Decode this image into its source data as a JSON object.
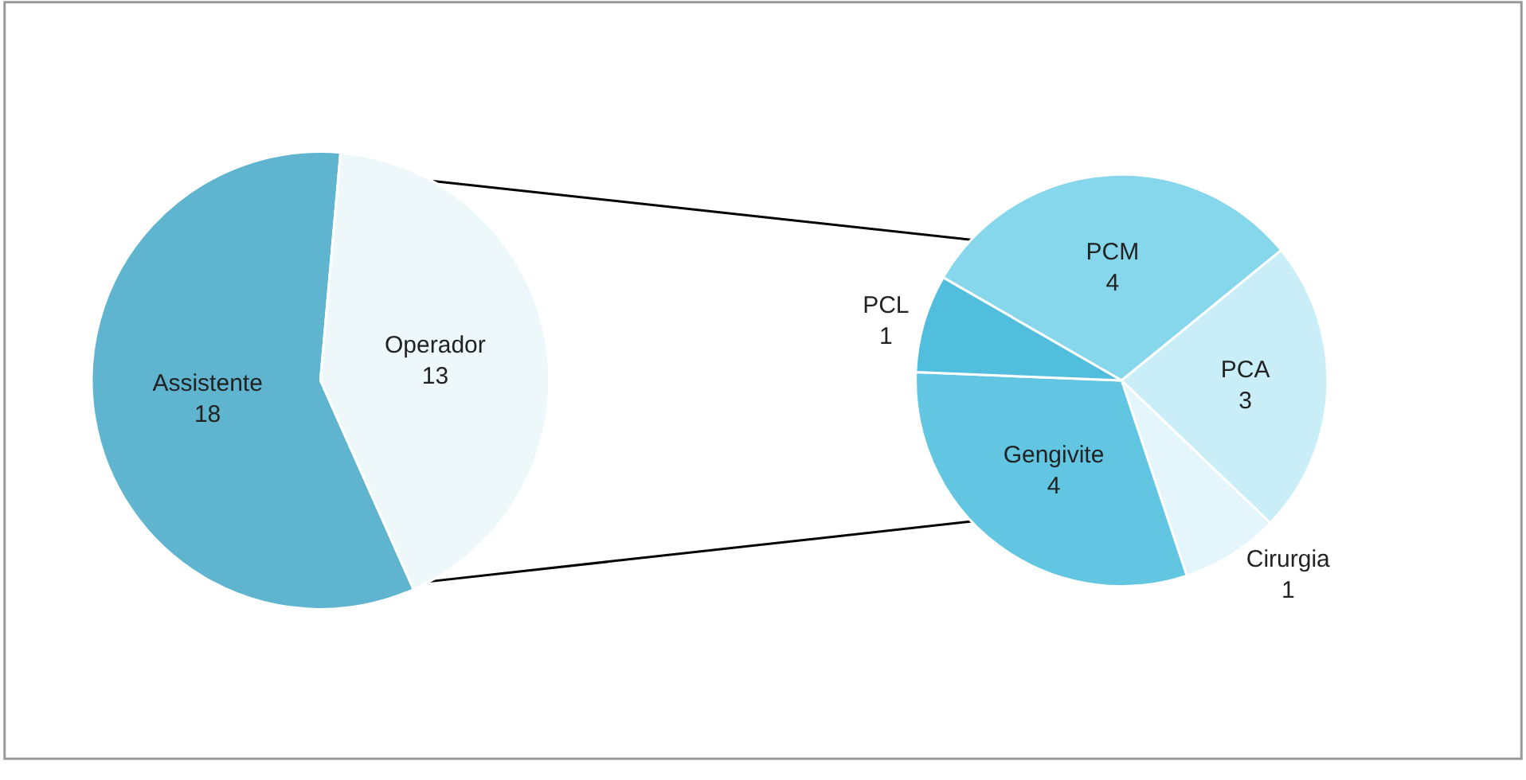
{
  "chart_data": [
    {
      "type": "pie",
      "categories": [
        "Assistente",
        "Operador"
      ],
      "values": [
        18,
        13
      ],
      "colors": [
        "#5fb4cf",
        "#eef8fb"
      ],
      "data_labels": true
    },
    {
      "type": "pie",
      "categories": [
        "PCM",
        "PCA",
        "Cirurgia",
        "Gengivite",
        "PCL"
      ],
      "values": [
        4,
        3,
        1,
        4,
        1
      ],
      "colors": [
        "#86d6ec",
        "#c9eef8",
        "#e4f6fb",
        "#62c6e2",
        "#52bedd"
      ],
      "data_labels": true
    }
  ]
}
